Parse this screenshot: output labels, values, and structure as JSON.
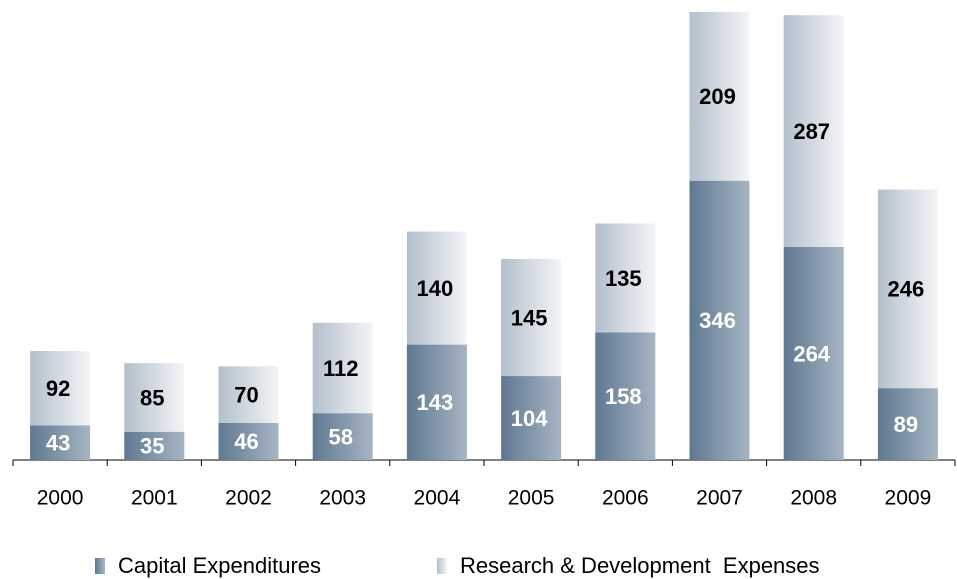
{
  "chart_data": {
    "type": "stacked-bar",
    "categories": [
      "2000",
      "2001",
      "2002",
      "2003",
      "2004",
      "2005",
      "2006",
      "2007",
      "2008",
      "2009"
    ],
    "series": [
      {
        "name": "Capital Expenditures",
        "color": "#5f7891",
        "label_color": "#ffffff",
        "values": [
          43,
          35,
          46,
          58,
          143,
          104,
          158,
          346,
          264,
          89
        ]
      },
      {
        "name": "Research & Development  Expenses",
        "color": "#b3bfcc",
        "label_color": "#000000",
        "values": [
          92,
          85,
          70,
          112,
          140,
          145,
          135,
          209,
          287,
          246
        ]
      }
    ]
  }
}
